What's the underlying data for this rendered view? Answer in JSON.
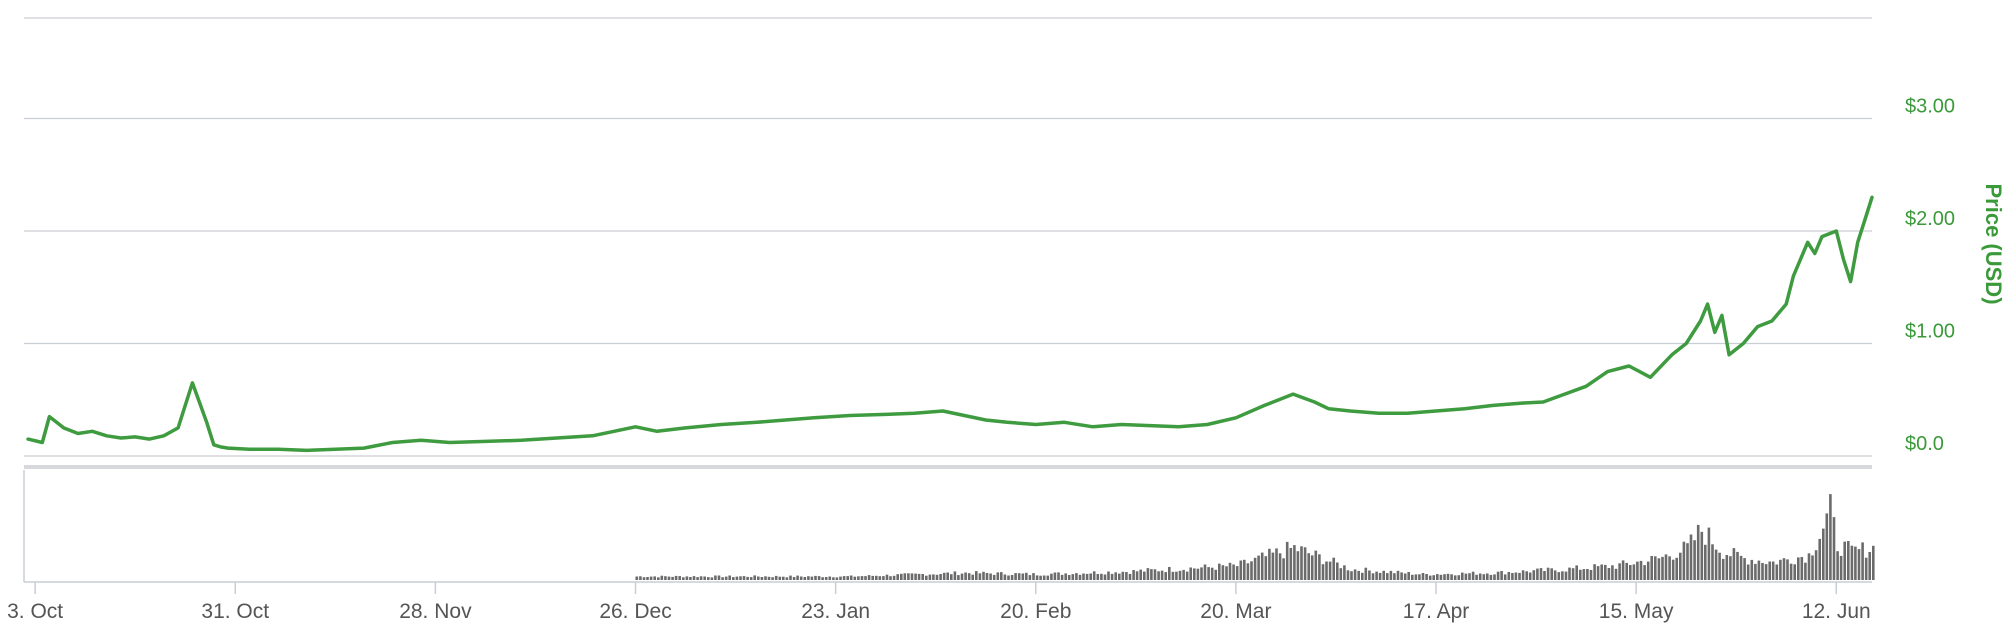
{
  "chart_data": {
    "type": "line",
    "title": "",
    "ylabel": "Price (USD)",
    "xlabel": "",
    "ylim": [
      0,
      4
    ],
    "y_ticks": [
      "$0.0",
      "$1.00",
      "$2.00",
      "$3.00"
    ],
    "y_tick_values": [
      0,
      1,
      2,
      3
    ],
    "x_ticks": [
      "3. Oct",
      "31. Oct",
      "28. Nov",
      "26. Dec",
      "23. Jan",
      "20. Feb",
      "20. Mar",
      "17. Apr",
      "15. May",
      "12. Jun"
    ],
    "x_tick_dates": [
      "2016-10-03",
      "2016-10-31",
      "2016-11-28",
      "2016-12-26",
      "2017-01-23",
      "2017-02-20",
      "2017-03-20",
      "2017-04-17",
      "2017-05-15",
      "2017-06-12"
    ],
    "xlim": [
      "2016-10-02",
      "2017-06-17"
    ],
    "grid": true,
    "colors": {
      "price": "#3f9b3f",
      "volume": "#6b6b6b",
      "axis_text": "#3a9a3a"
    },
    "series": [
      {
        "x": [
          "2016-10-02",
          "2016-10-04",
          "2016-10-05",
          "2016-10-06",
          "2016-10-07",
          "2016-10-09",
          "2016-10-11",
          "2016-10-13",
          "2016-10-15",
          "2016-10-17",
          "2016-10-19",
          "2016-10-21",
          "2016-10-23",
          "2016-10-25",
          "2016-10-27",
          "2016-10-28",
          "2016-10-29",
          "2016-10-30",
          "2016-11-02",
          "2016-11-06",
          "2016-11-10",
          "2016-11-14",
          "2016-11-18",
          "2016-11-22",
          "2016-11-26",
          "2016-11-30",
          "2016-12-05",
          "2016-12-10",
          "2016-12-15",
          "2016-12-20",
          "2016-12-26",
          "2016-12-29",
          "2017-01-02",
          "2017-01-07",
          "2017-01-12",
          "2017-01-16",
          "2017-01-20",
          "2017-01-25",
          "2017-01-30",
          "2017-02-03",
          "2017-02-07",
          "2017-02-10",
          "2017-02-13",
          "2017-02-16",
          "2017-02-20",
          "2017-02-24",
          "2017-02-28",
          "2017-03-04",
          "2017-03-08",
          "2017-03-12",
          "2017-03-16",
          "2017-03-20",
          "2017-03-24",
          "2017-03-28",
          "2017-03-31",
          "2017-04-02",
          "2017-04-05",
          "2017-04-09",
          "2017-04-13",
          "2017-04-17",
          "2017-04-21",
          "2017-04-25",
          "2017-04-29",
          "2017-05-02",
          "2017-05-05",
          "2017-05-08",
          "2017-05-11",
          "2017-05-14",
          "2017-05-17",
          "2017-05-20",
          "2017-05-22",
          "2017-05-24",
          "2017-05-25",
          "2017-05-26",
          "2017-05-27",
          "2017-05-28",
          "2017-05-30",
          "2017-06-01",
          "2017-06-03",
          "2017-06-05",
          "2017-06-06",
          "2017-06-08",
          "2017-06-09",
          "2017-06-10",
          "2017-06-12",
          "2017-06-13",
          "2017-06-14",
          "2017-06-15",
          "2017-06-16",
          "2017-06-17"
        ],
        "values": [
          0.15,
          0.12,
          0.35,
          0.3,
          0.25,
          0.2,
          0.22,
          0.18,
          0.16,
          0.17,
          0.15,
          0.18,
          0.25,
          0.65,
          0.3,
          0.1,
          0.08,
          0.07,
          0.06,
          0.06,
          0.05,
          0.06,
          0.07,
          0.12,
          0.14,
          0.12,
          0.13,
          0.14,
          0.16,
          0.18,
          0.26,
          0.22,
          0.25,
          0.28,
          0.3,
          0.32,
          0.34,
          0.36,
          0.37,
          0.38,
          0.4,
          0.36,
          0.32,
          0.3,
          0.28,
          0.3,
          0.26,
          0.28,
          0.27,
          0.26,
          0.28,
          0.34,
          0.45,
          0.55,
          0.48,
          0.42,
          0.4,
          0.38,
          0.38,
          0.4,
          0.42,
          0.45,
          0.47,
          0.48,
          0.55,
          0.62,
          0.75,
          0.8,
          0.7,
          0.9,
          1.0,
          1.2,
          1.35,
          1.1,
          1.25,
          0.9,
          1.0,
          1.15,
          1.2,
          1.35,
          1.6,
          1.9,
          1.8,
          1.95,
          2.0,
          1.75,
          1.55,
          1.9,
          2.1,
          2.3
        ]
      }
    ],
    "volume_series": [
      {
        "x": [
          "2016-12-26",
          "2017-01-10",
          "2017-01-25",
          "2017-02-10",
          "2017-02-20",
          "2017-03-05",
          "2017-03-20",
          "2017-03-28",
          "2017-04-01",
          "2017-04-05",
          "2017-04-15",
          "2017-04-25",
          "2017-05-05",
          "2017-05-12",
          "2017-05-18",
          "2017-05-22",
          "2017-05-24",
          "2017-05-27",
          "2017-05-30",
          "2017-06-03",
          "2017-06-08",
          "2017-06-11",
          "2017-06-12",
          "2017-06-14",
          "2017-06-17"
        ],
        "values": [
          0.05,
          0.05,
          0.05,
          0.1,
          0.08,
          0.12,
          0.2,
          0.45,
          0.3,
          0.15,
          0.08,
          0.1,
          0.15,
          0.2,
          0.3,
          0.45,
          0.7,
          0.4,
          0.3,
          0.25,
          0.35,
          0.95,
          0.5,
          0.4,
          0.45
        ]
      }
    ]
  }
}
